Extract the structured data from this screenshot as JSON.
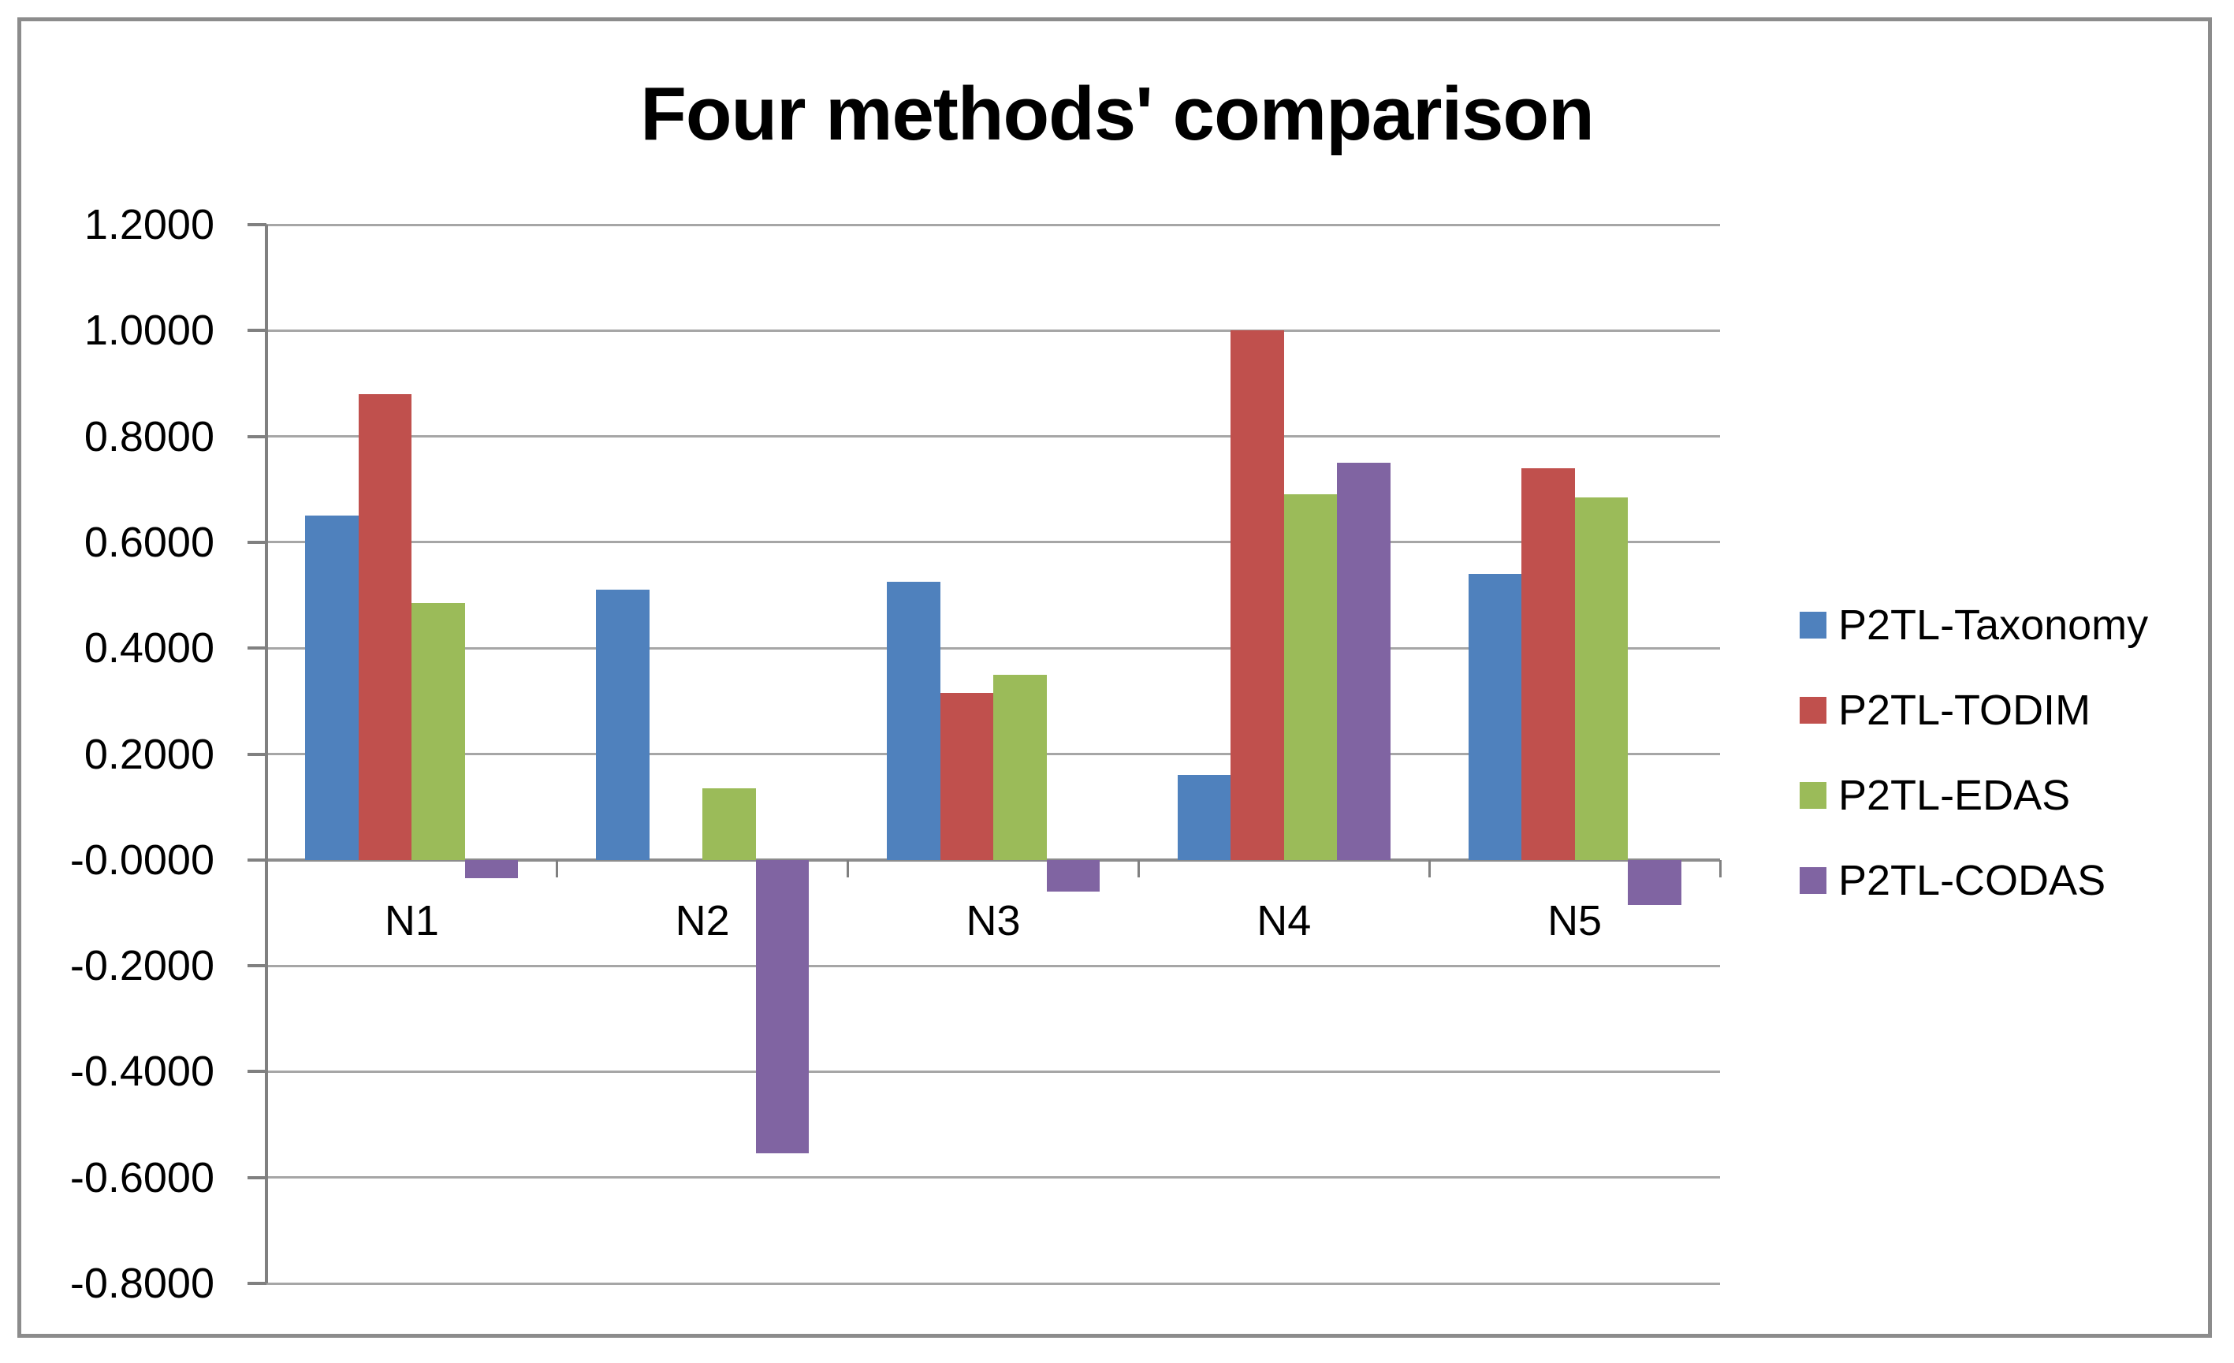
{
  "chart_data": {
    "type": "bar",
    "title": "Four methods' comparison",
    "categories": [
      "N1",
      "N2",
      "N3",
      "N4",
      "N5"
    ],
    "series": [
      {
        "name": "P2TL-Taxonomy",
        "color": "#4F81BD",
        "values": [
          0.65,
          0.51,
          0.525,
          0.16,
          0.54
        ]
      },
      {
        "name": "P2TL-TODIM",
        "color": "#C0504D",
        "values": [
          0.88,
          0.0,
          0.315,
          1.0,
          0.74
        ]
      },
      {
        "name": "P2TL-EDAS",
        "color": "#9BBB59",
        "values": [
          0.485,
          0.135,
          0.35,
          0.69,
          0.685
        ]
      },
      {
        "name": "P2TL-CODAS",
        "color": "#8064A2",
        "values": [
          -0.035,
          -0.555,
          -0.06,
          0.75,
          -0.085
        ]
      }
    ],
    "xlabel": "",
    "ylabel": "",
    "ylim": [
      -0.8,
      1.2
    ],
    "ytick_step": 0.2,
    "ytick_decimals": 4,
    "grid": true,
    "legend_position": "right",
    "colors": {
      "background": "#FFFFFF",
      "gridline": "#A6A6A6",
      "axis": "#808080",
      "zero_line": "#8C8C8C",
      "border": "#8C8C8C",
      "text": "#000000"
    }
  }
}
